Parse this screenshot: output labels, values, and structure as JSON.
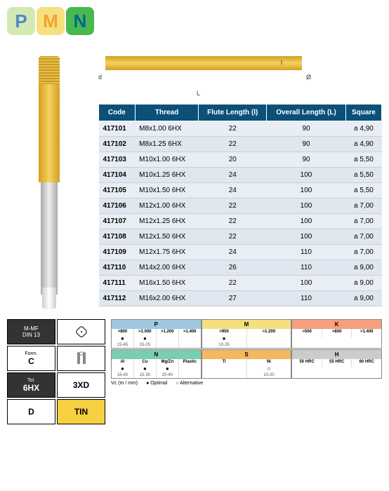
{
  "logo": {
    "p": "P",
    "m": "M",
    "n": "N"
  },
  "schematic": {
    "d": "d",
    "L": "L",
    "l": "l",
    "dia": "Ø"
  },
  "table": {
    "headers": [
      "Code",
      "Thread",
      "Flute Length (l)",
      "Overall Length (L)",
      "Square"
    ],
    "rows": [
      [
        "417101",
        "M8x1.00 6HX",
        "22",
        "90",
        "a 4,90"
      ],
      [
        "417102",
        "M8x1.25 6HX",
        "22",
        "90",
        "a 4,90"
      ],
      [
        "417103",
        "M10x1.00 6HX",
        "20",
        "90",
        "a 5,50"
      ],
      [
        "417104",
        "M10x1.25 6HX",
        "24",
        "100",
        "a 5,50"
      ],
      [
        "417105",
        "M10x1.50 6HX",
        "24",
        "100",
        "a 5,50"
      ],
      [
        "417106",
        "M12x1.00 6HX",
        "22",
        "100",
        "a 7,00"
      ],
      [
        "417107",
        "M12x1.25 6HX",
        "22",
        "100",
        "a 7,00"
      ],
      [
        "417108",
        "M12x1.50 6HX",
        "22",
        "100",
        "a 7,00"
      ],
      [
        "417109",
        "M12x1.75 6HX",
        "24",
        "110",
        "a 7,00"
      ],
      [
        "417110",
        "M14x2.00 6HX",
        "26",
        "110",
        "a 9,00"
      ],
      [
        "417111",
        "M16x1.50 6HX",
        "22",
        "100",
        "a 9,00"
      ],
      [
        "417112",
        "M16x2.00 6HX",
        "27",
        "110",
        "a 9,00"
      ]
    ]
  },
  "specs": {
    "mmf": {
      "top": "M-MF",
      "bottom": "DIN 13"
    },
    "form": {
      "top": "Form.",
      "val": "C"
    },
    "tol": {
      "top": "Tol.",
      "val": "6HX"
    },
    "depth": {
      "val": "3XD"
    },
    "chamfer": {
      "val": "D"
    },
    "coating": {
      "val": "TIN"
    }
  },
  "materials": {
    "p": {
      "label": "P",
      "cells": [
        {
          "v": ">800",
          "dot": "●",
          "r": "15-45"
        },
        {
          "v": ">1.000",
          "dot": "●",
          "r": "15-25"
        },
        {
          "v": ">1.200",
          "dot": "",
          "r": ""
        },
        {
          "v": ">1.400",
          "dot": "",
          "r": ""
        }
      ]
    },
    "m": {
      "label": "M",
      "cells": [
        {
          "v": ">950",
          "dot": "●",
          "r": "10-25"
        },
        {
          "v": ">1.200",
          "dot": "",
          "r": ""
        }
      ]
    },
    "k": {
      "label": "K",
      "cells": [
        {
          "v": ">500",
          "dot": "",
          "r": ""
        },
        {
          "v": ">800",
          "dot": "",
          "r": ""
        },
        {
          "v": ">1.400",
          "dot": "",
          "r": ""
        }
      ]
    },
    "n": {
      "label": "N",
      "cells": [
        {
          "v": "Al",
          "dot": "●",
          "r": "15-40"
        },
        {
          "v": "Cu",
          "dot": "●",
          "r": "15-30"
        },
        {
          "v": "Mg/Zn",
          "dot": "●",
          "r": "20-40"
        },
        {
          "v": "Plastic",
          "dot": "",
          "r": ""
        }
      ]
    },
    "s": {
      "label": "S",
      "cells": [
        {
          "v": "Ti",
          "dot": "",
          "r": ""
        },
        {
          "v": "Ni",
          "dot": "○",
          "r": "10-20"
        }
      ]
    },
    "h": {
      "label": "H",
      "cells": [
        {
          "v": "50 HRC",
          "dot": "",
          "r": ""
        },
        {
          "v": "55 HRC",
          "dot": "",
          "r": ""
        },
        {
          "v": "60 HRC",
          "dot": "",
          "r": ""
        }
      ]
    }
  },
  "legend": {
    "vc": "Vc (m / mm)",
    "optimal": "● Optimal",
    "alt": "○ Alternative"
  }
}
